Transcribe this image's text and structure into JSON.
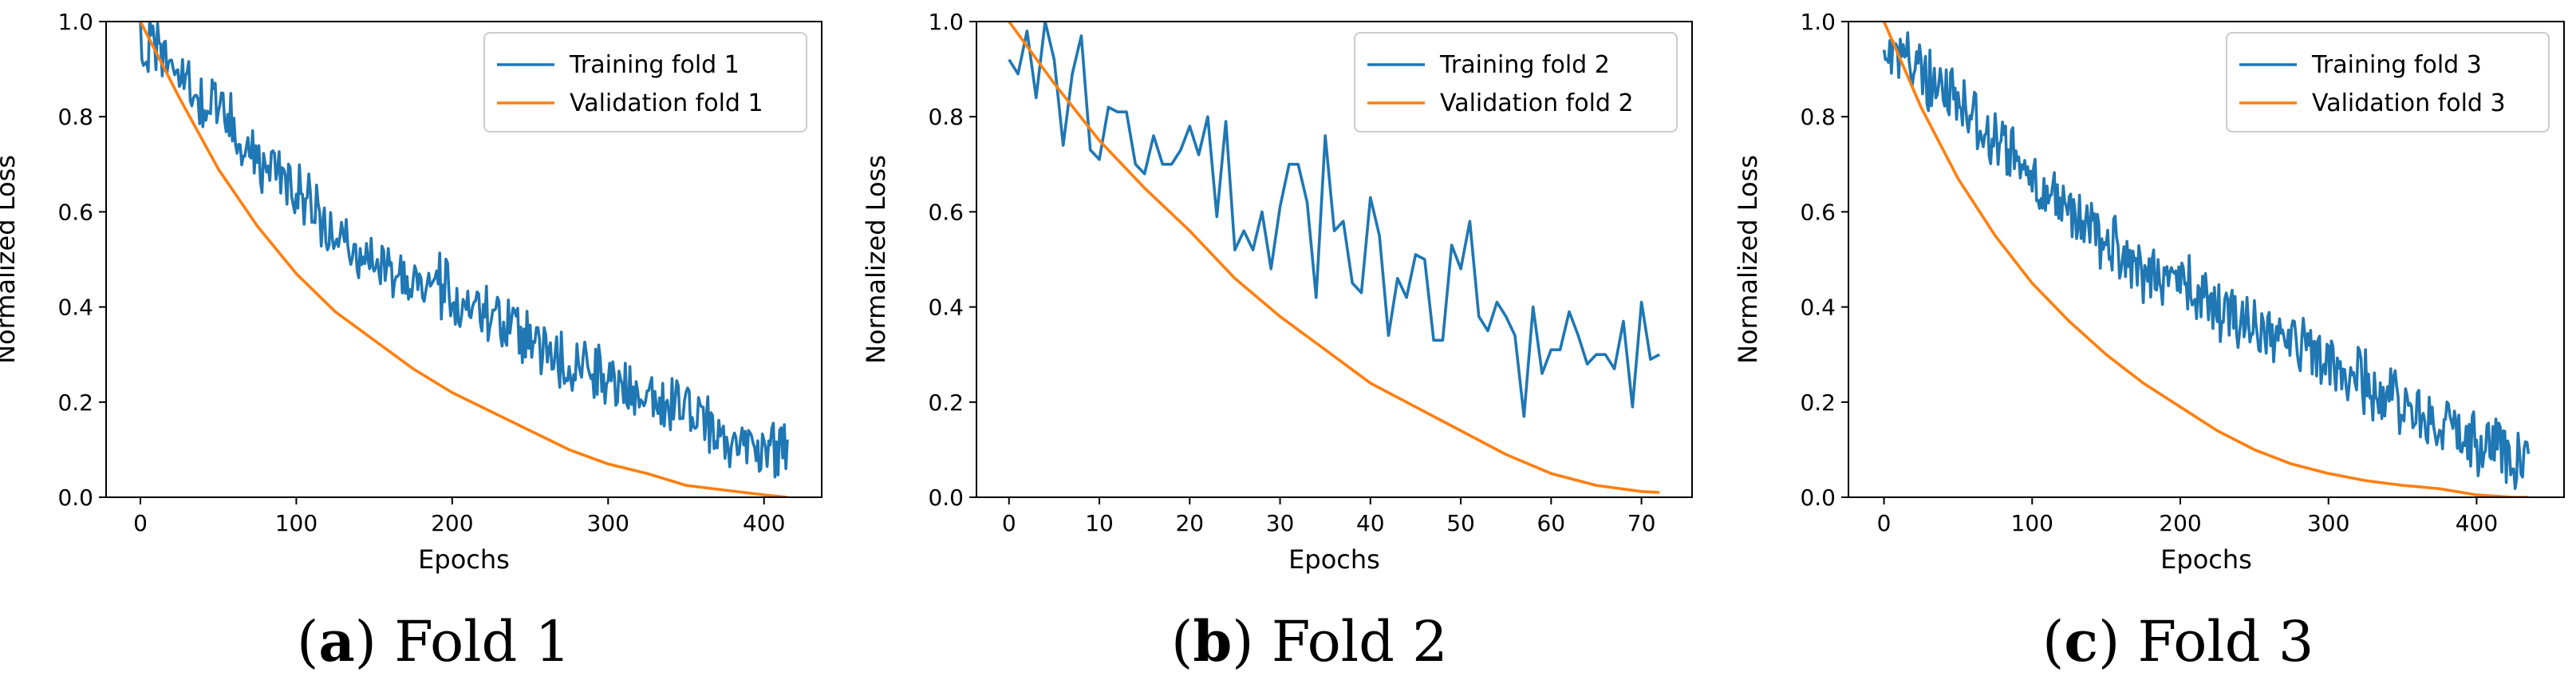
{
  "colors": {
    "training": "#1f77b4",
    "validation": "#ff7f0e"
  },
  "chart_data": [
    {
      "type": "line",
      "panel_label": "(a)",
      "caption": "Fold 1",
      "xlabel": "Epochs",
      "ylabel": "Normalized Loss",
      "xlim": [
        -22,
        437
      ],
      "ylim": [
        0,
        1.0
      ],
      "xticks": [
        0,
        100,
        200,
        300,
        400
      ],
      "yticks": [
        0.0,
        0.2,
        0.4,
        0.6,
        0.8,
        1.0
      ],
      "legend_position": "top-right",
      "series": [
        {
          "name": "Training fold 1",
          "color": "#1f77b4",
          "noisy": true,
          "x": [
            0,
            25,
            50,
            75,
            100,
            125,
            150,
            175,
            200,
            225,
            250,
            275,
            300,
            325,
            350,
            375,
            400,
            415
          ],
          "y": [
            0.97,
            0.89,
            0.81,
            0.71,
            0.64,
            0.57,
            0.5,
            0.46,
            0.43,
            0.38,
            0.33,
            0.28,
            0.25,
            0.21,
            0.18,
            0.13,
            0.11,
            0.09
          ]
        },
        {
          "name": "Validation fold 1",
          "color": "#ff7f0e",
          "noisy": false,
          "x": [
            0,
            25,
            50,
            75,
            100,
            125,
            150,
            175,
            200,
            225,
            250,
            275,
            300,
            325,
            350,
            375,
            400,
            415
          ],
          "y": [
            1.0,
            0.84,
            0.69,
            0.57,
            0.47,
            0.39,
            0.33,
            0.27,
            0.22,
            0.18,
            0.14,
            0.1,
            0.07,
            0.05,
            0.025,
            0.015,
            0.005,
            0.0
          ]
        }
      ]
    },
    {
      "type": "line",
      "panel_label": "(b)",
      "caption": "Fold 2",
      "xlabel": "Epochs",
      "ylabel": "Normalized Loss",
      "xlim": [
        -3.6,
        75.6
      ],
      "ylim": [
        0,
        1.0
      ],
      "xticks": [
        0,
        10,
        20,
        30,
        40,
        50,
        60,
        70
      ],
      "yticks": [
        0.0,
        0.2,
        0.4,
        0.6,
        0.8,
        1.0
      ],
      "legend_position": "top-right",
      "series": [
        {
          "name": "Training fold 2",
          "color": "#1f77b4",
          "noisy": false,
          "x": [
            0,
            1,
            2,
            3,
            4,
            5,
            6,
            7,
            8,
            9,
            10,
            11,
            12,
            13,
            14,
            15,
            16,
            17,
            18,
            19,
            20,
            21,
            22,
            23,
            24,
            25,
            26,
            27,
            28,
            29,
            30,
            31,
            32,
            33,
            34,
            35,
            36,
            37,
            38,
            39,
            40,
            41,
            42,
            43,
            44,
            45,
            46,
            47,
            48,
            49,
            50,
            51,
            52,
            53,
            54,
            55,
            56,
            57,
            58,
            59,
            60,
            61,
            62,
            63,
            64,
            65,
            66,
            67,
            68,
            69,
            70,
            71,
            72
          ],
          "y": [
            0.92,
            0.89,
            0.98,
            0.84,
            1.0,
            0.92,
            0.74,
            0.89,
            0.97,
            0.73,
            0.71,
            0.82,
            0.81,
            0.81,
            0.7,
            0.68,
            0.76,
            0.7,
            0.7,
            0.73,
            0.78,
            0.72,
            0.8,
            0.59,
            0.79,
            0.52,
            0.56,
            0.52,
            0.6,
            0.48,
            0.61,
            0.7,
            0.7,
            0.62,
            0.42,
            0.76,
            0.56,
            0.58,
            0.45,
            0.43,
            0.63,
            0.55,
            0.34,
            0.46,
            0.42,
            0.51,
            0.5,
            0.33,
            0.33,
            0.53,
            0.48,
            0.58,
            0.38,
            0.35,
            0.41,
            0.38,
            0.34,
            0.17,
            0.4,
            0.26,
            0.31,
            0.31,
            0.39,
            0.34,
            0.28,
            0.3,
            0.3,
            0.27,
            0.37,
            0.19,
            0.41,
            0.29,
            0.3
          ]
        },
        {
          "name": "Validation fold 2",
          "color": "#ff7f0e",
          "noisy": false,
          "x": [
            0,
            5,
            10,
            15,
            20,
            25,
            30,
            35,
            40,
            45,
            50,
            55,
            60,
            65,
            70,
            72
          ],
          "y": [
            1.0,
            0.87,
            0.75,
            0.65,
            0.56,
            0.46,
            0.38,
            0.31,
            0.24,
            0.19,
            0.14,
            0.09,
            0.05,
            0.025,
            0.012,
            0.01
          ]
        }
      ]
    },
    {
      "type": "line",
      "panel_label": "(c)",
      "caption": "Fold 3",
      "xlabel": "Epochs",
      "ylabel": "Normalized Loss",
      "xlim": [
        -24,
        459
      ],
      "ylim": [
        0,
        1.0
      ],
      "xticks": [
        0,
        100,
        200,
        300,
        400
      ],
      "yticks": [
        0.0,
        0.2,
        0.4,
        0.6,
        0.8,
        1.0
      ],
      "legend_position": "top-right",
      "series": [
        {
          "name": "Training fold 3",
          "color": "#1f77b4",
          "noisy": true,
          "x": [
            0,
            25,
            50,
            75,
            100,
            125,
            150,
            175,
            200,
            225,
            250,
            275,
            300,
            325,
            350,
            375,
            400,
            425,
            435
          ],
          "y": [
            0.95,
            0.9,
            0.83,
            0.75,
            0.67,
            0.6,
            0.54,
            0.48,
            0.45,
            0.4,
            0.36,
            0.32,
            0.28,
            0.24,
            0.2,
            0.16,
            0.12,
            0.08,
            0.07
          ]
        },
        {
          "name": "Validation fold 3",
          "color": "#ff7f0e",
          "noisy": false,
          "x": [
            0,
            25,
            50,
            75,
            100,
            125,
            150,
            175,
            200,
            225,
            250,
            275,
            300,
            325,
            350,
            375,
            400,
            425,
            435
          ],
          "y": [
            1.0,
            0.82,
            0.67,
            0.55,
            0.45,
            0.37,
            0.3,
            0.24,
            0.19,
            0.14,
            0.1,
            0.07,
            0.05,
            0.035,
            0.025,
            0.018,
            0.005,
            0.0,
            0.0
          ]
        }
      ]
    }
  ]
}
